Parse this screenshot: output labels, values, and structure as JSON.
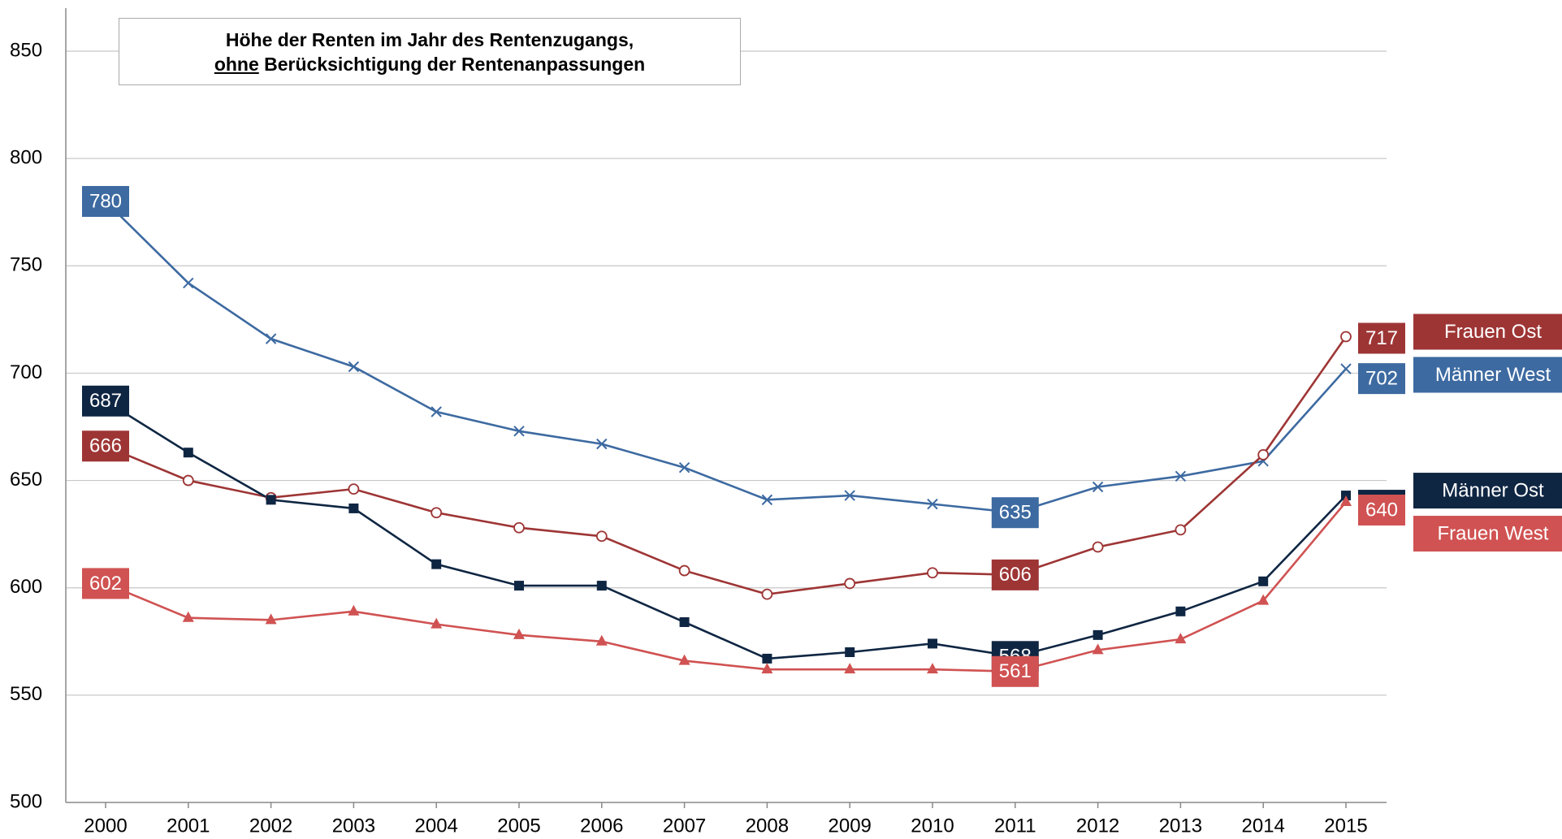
{
  "chart_data": {
    "type": "line",
    "title": [
      "Höhe der Renten im Jahr des Rentenzugangs,",
      [
        "ohne",
        "Berücksichtigung der Rentenanpassungen"
      ]
    ],
    "categories": [
      "2000",
      "2001",
      "2002",
      "2003",
      "2004",
      "2005",
      "2006",
      "2007",
      "2008",
      "2009",
      "2010",
      "2011",
      "2012",
      "2013",
      "2014",
      "2015"
    ],
    "ylim": [
      500,
      850
    ],
    "yticks": [
      500,
      550,
      600,
      650,
      700,
      750,
      800,
      850
    ],
    "grid": true,
    "series": [
      {
        "name": "Männer West",
        "color": "#3d6aa1",
        "marker": "x",
        "values": [
          780,
          742,
          716,
          703,
          682,
          673,
          667,
          656,
          641,
          643,
          639,
          635,
          647,
          652,
          659,
          702
        ],
        "value_labels": [
          "780",
          null,
          null,
          null,
          null,
          null,
          null,
          null,
          null,
          null,
          null,
          "635",
          null,
          null,
          null,
          "702"
        ]
      },
      {
        "name": "Frauen Ost",
        "color": "#9e3535",
        "marker": "circle",
        "values": [
          666,
          650,
          642,
          646,
          635,
          628,
          624,
          608,
          597,
          602,
          607,
          606,
          619,
          627,
          662,
          717
        ],
        "value_labels": [
          "666",
          null,
          null,
          null,
          null,
          null,
          null,
          null,
          null,
          null,
          null,
          "606",
          null,
          null,
          null,
          "717"
        ]
      },
      {
        "name": "Männer Ost",
        "color": "#0f2643",
        "marker": "square",
        "values": [
          687,
          663,
          641,
          637,
          611,
          601,
          601,
          584,
          567,
          570,
          574,
          568,
          578,
          589,
          603,
          643
        ],
        "value_labels": [
          "687",
          null,
          null,
          null,
          null,
          null,
          null,
          null,
          null,
          null,
          null,
          "568",
          null,
          null,
          null,
          "643"
        ]
      },
      {
        "name": "Frauen West",
        "color": "#d05252",
        "marker": "triangle",
        "values": [
          602,
          586,
          585,
          589,
          583,
          578,
          575,
          566,
          562,
          562,
          562,
          561,
          571,
          576,
          594,
          640
        ],
        "value_labels": [
          "602",
          null,
          null,
          null,
          null,
          null,
          null,
          null,
          null,
          null,
          null,
          "561",
          null,
          null,
          null,
          "640"
        ]
      }
    ]
  }
}
